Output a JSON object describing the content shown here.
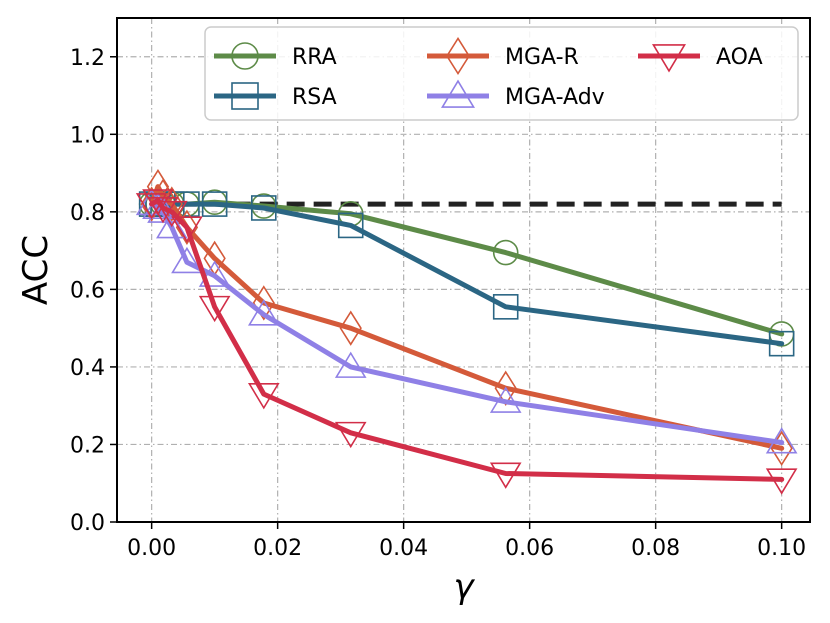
{
  "chart_data": {
    "type": "line",
    "title": "",
    "xlabel": "γ",
    "ylabel": "ACC",
    "xlim": [
      -0.0055,
      0.1045
    ],
    "ylim": [
      0.0,
      1.3
    ],
    "xticks": [
      0.0,
      0.02,
      0.04,
      0.06,
      0.08,
      0.1
    ],
    "xtick_labels": [
      "0.00",
      "0.02",
      "0.04",
      "0.06",
      "0.08",
      "0.10"
    ],
    "yticks": [
      0.0,
      0.2,
      0.4,
      0.6,
      0.8,
      1.0,
      1.2
    ],
    "ytick_labels": [
      "0.0",
      "0.2",
      "0.4",
      "0.6",
      "0.8",
      "1.0",
      "1.2"
    ],
    "grid": true,
    "legend_position": "top-right",
    "reference_line": {
      "y": 0.82,
      "x_range": [
        0.0,
        0.1
      ],
      "style": "dashed",
      "color": "#222222"
    },
    "series": [
      {
        "name": "RRA",
        "color": "#5d8b48",
        "marker": "circle",
        "x": [
          0.0,
          0.001,
          0.0018,
          0.0032,
          0.0056,
          0.01,
          0.0178,
          0.0316,
          0.0562,
          0.1
        ],
        "y": [
          0.82,
          0.82,
          0.82,
          0.82,
          0.82,
          0.825,
          0.815,
          0.795,
          0.695,
          0.485
        ]
      },
      {
        "name": "RSA",
        "color": "#2b6684",
        "marker": "square",
        "x": [
          0.0,
          0.001,
          0.0018,
          0.0032,
          0.0056,
          0.01,
          0.0178,
          0.0316,
          0.0562,
          0.1
        ],
        "y": [
          0.82,
          0.82,
          0.82,
          0.82,
          0.82,
          0.82,
          0.81,
          0.765,
          0.555,
          0.46
        ]
      },
      {
        "name": "MGA-R",
        "color": "#d45a3a",
        "marker": "diamond",
        "x": [
          0.0,
          0.001,
          0.0018,
          0.0032,
          0.0056,
          0.01,
          0.0178,
          0.0316,
          0.0562,
          0.1
        ],
        "y": [
          0.82,
          0.865,
          0.84,
          0.82,
          0.76,
          0.68,
          0.565,
          0.5,
          0.345,
          0.19
        ]
      },
      {
        "name": "MGA-Adv",
        "color": "#8f80e6",
        "marker": "triangle-up",
        "x": [
          0.0,
          0.001,
          0.0018,
          0.0032,
          0.0056,
          0.01,
          0.0178,
          0.0316,
          0.0562,
          0.1
        ],
        "y": [
          0.82,
          0.81,
          0.8,
          0.76,
          0.67,
          0.635,
          0.535,
          0.4,
          0.31,
          0.205
        ]
      },
      {
        "name": "AOA",
        "color": "#d22e48",
        "marker": "triangle-down",
        "x": [
          0.0,
          0.001,
          0.0018,
          0.0032,
          0.0056,
          0.01,
          0.0178,
          0.0316,
          0.0562,
          0.1
        ],
        "y": [
          0.82,
          0.83,
          0.81,
          0.8,
          0.76,
          0.555,
          0.33,
          0.23,
          0.125,
          0.11
        ]
      }
    ]
  }
}
